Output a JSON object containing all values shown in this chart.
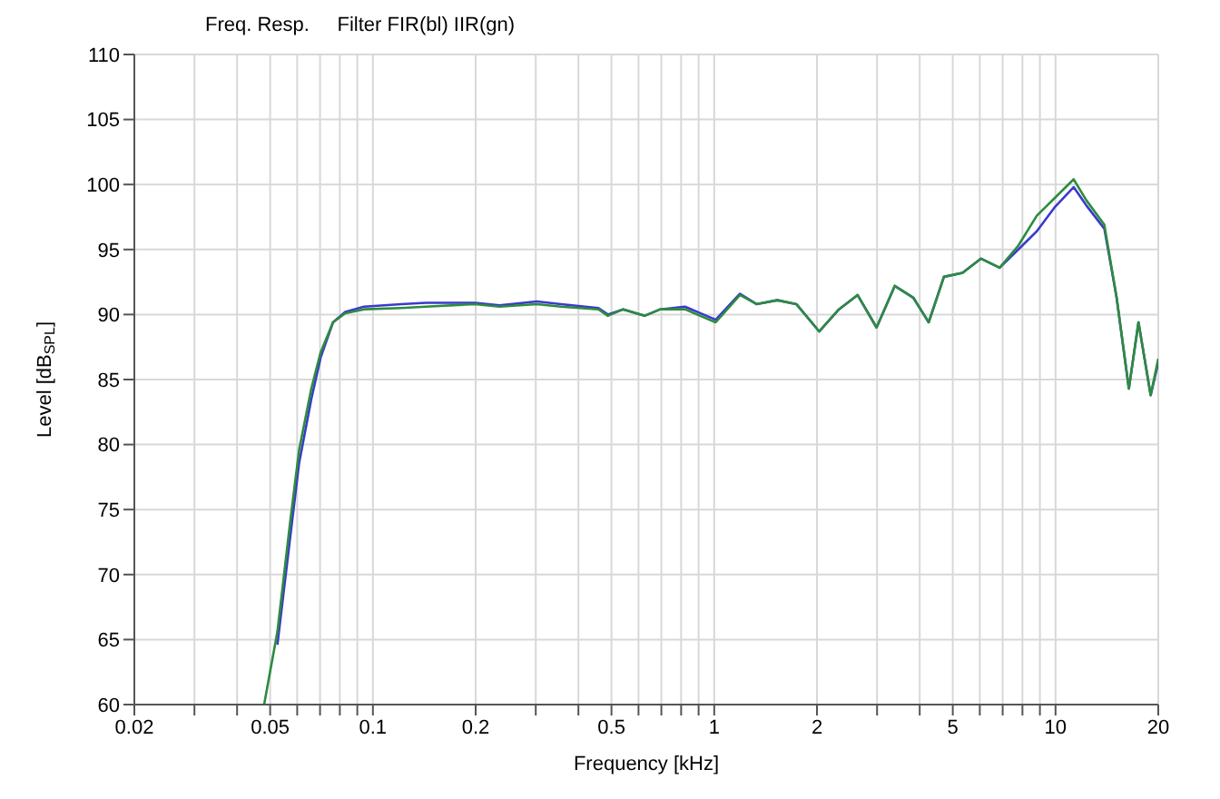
{
  "chart_data": {
    "type": "line",
    "title": "Freq. Resp.     Filter FIR(bl) IIR(gn)",
    "xlabel": "Frequency [kHz]",
    "ylabel": "Level [dB$_{SPL}$]",
    "x": [
      0.048,
      0.0525,
      0.0572,
      0.0608,
      0.066,
      0.0703,
      0.0764,
      0.083,
      0.0942,
      0.121,
      0.143,
      0.199,
      0.235,
      0.302,
      0.356,
      0.458,
      0.488,
      0.541,
      0.625,
      0.695,
      0.821,
      1.01,
      1.19,
      1.33,
      1.53,
      1.74,
      2.03,
      2.32,
      2.63,
      2.99,
      3.38,
      3.83,
      4.25,
      4.71,
      5.34,
      6.05,
      6.86,
      7.78,
      8.81,
      9.98,
      11.3,
      12.3,
      13.9,
      15.1,
      16.4,
      17.5,
      19.0,
      20
    ],
    "series": [
      {
        "color": "#3a3acc",
        "values": [
          null,
          64.6,
          72.8,
          78.6,
          83.5,
          86.7,
          89.4,
          90.2,
          90.6,
          90.8,
          90.9,
          90.9,
          90.7,
          91.0,
          90.8,
          90.5,
          90.0,
          90.4,
          89.9,
          90.4,
          90.6,
          89.6,
          91.6,
          90.8,
          91.1,
          90.8,
          88.7,
          90.4,
          91.5,
          89.0,
          92.2,
          91.3,
          89.4,
          92.9,
          93.2,
          94.3,
          93.6,
          95.0,
          96.4,
          98.3,
          99.8,
          98.4,
          96.6,
          91.3,
          84.3,
          89.4,
          83.8,
          86.3
        ]
      },
      {
        "color": "#2e8b3e",
        "values": [
          60,
          65.6,
          74.0,
          79.6,
          84.3,
          87.1,
          89.4,
          90.1,
          90.4,
          90.5,
          90.6,
          90.8,
          90.6,
          90.8,
          90.6,
          90.4,
          89.9,
          90.4,
          89.9,
          90.4,
          90.4,
          89.4,
          91.5,
          90.8,
          91.1,
          90.8,
          88.7,
          90.4,
          91.5,
          89.0,
          92.2,
          91.3,
          89.4,
          92.9,
          93.2,
          94.3,
          93.6,
          95.3,
          97.6,
          99.0,
          100.4,
          98.8,
          96.9,
          91.3,
          84.3,
          89.4,
          83.8,
          86.6
        ]
      }
    ],
    "log": "x",
    "xlim": [
      0.02,
      20
    ],
    "xticks": [
      0.02,
      {
        "value": 0.03,
        "label": null
      },
      {
        "value": 0.04,
        "label": null
      },
      0.05,
      {
        "value": 0.06,
        "label": null
      },
      {
        "value": 0.07,
        "label": null
      },
      {
        "value": 0.08,
        "label": null
      },
      {
        "value": 0.09,
        "label": null
      },
      0.1,
      0.2,
      {
        "value": 0.3,
        "label": null
      },
      {
        "value": 0.4,
        "label": null
      },
      0.5,
      {
        "value": 0.6,
        "label": null
      },
      {
        "value": 0.7,
        "label": null
      },
      {
        "value": 0.8,
        "label": null
      },
      {
        "value": 0.9,
        "label": null
      },
      1,
      2,
      {
        "value": 3,
        "label": null
      },
      {
        "value": 4,
        "label": null
      },
      5,
      {
        "value": 6,
        "label": null
      },
      {
        "value": 7,
        "label": null
      },
      {
        "value": 8,
        "label": null
      },
      {
        "value": 9,
        "label": null
      },
      10,
      20
    ],
    "ylim": [
      60,
      110
    ],
    "yticks": [
      60,
      65,
      70,
      75,
      80,
      85,
      90,
      95,
      100,
      105,
      110
    ],
    "grid": true,
    "legend": false,
    "marker": "none",
    "line_style": "solid"
  }
}
